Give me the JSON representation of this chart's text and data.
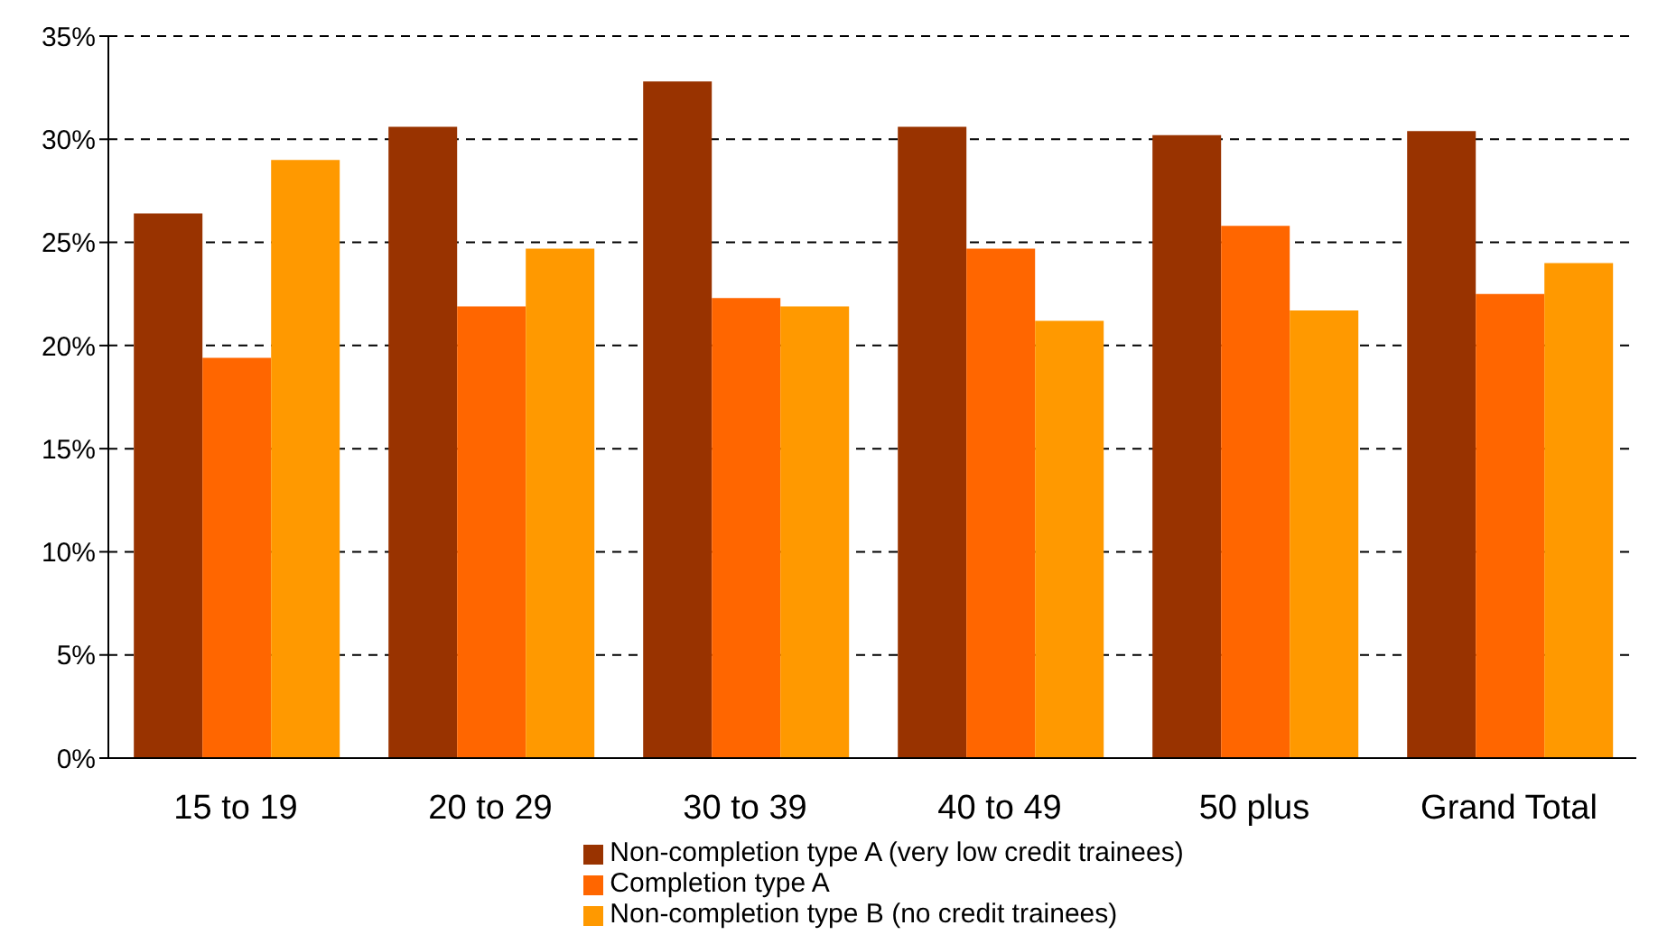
{
  "chart_data": {
    "type": "bar",
    "categories": [
      "15 to 19",
      "20 to 29",
      "30 to 39",
      "40 to 49",
      "50 plus",
      "Grand Total"
    ],
    "series": [
      {
        "name": "Non-completion type A (very low credit trainees)",
        "color": "#993300",
        "values": [
          26.4,
          30.6,
          32.8,
          30.6,
          30.2,
          30.4
        ]
      },
      {
        "name": "Completion type A",
        "color": "#ff6600",
        "values": [
          19.4,
          21.9,
          22.3,
          24.7,
          25.8,
          22.5
        ]
      },
      {
        "name": "Non-completion type B (no credit trainees)",
        "color": "#ff9900",
        "values": [
          29.0,
          24.7,
          21.9,
          21.2,
          21.7,
          24.0
        ]
      }
    ],
    "ylim": [
      0,
      35
    ],
    "yticks": [
      {
        "value": 0,
        "label": "0%"
      },
      {
        "value": 5,
        "label": "5%"
      },
      {
        "value": 10,
        "label": "10%"
      },
      {
        "value": 15,
        "label": "15%"
      },
      {
        "value": 20,
        "label": "20%"
      },
      {
        "value": 25,
        "label": "25%"
      },
      {
        "value": 30,
        "label": "30%"
      },
      {
        "value": 35,
        "label": "35%"
      }
    ],
    "grid": "y",
    "legend": "bottom"
  }
}
